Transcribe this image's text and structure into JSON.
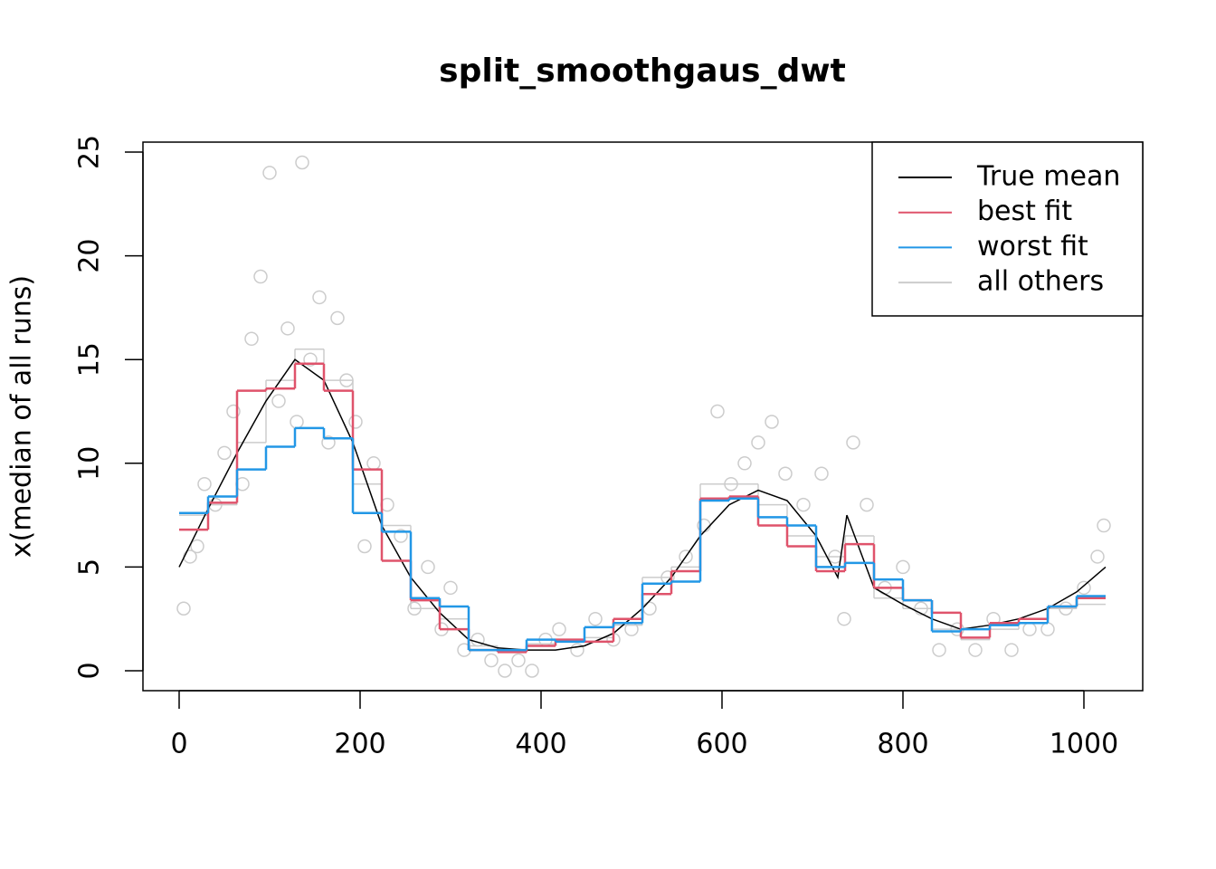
{
  "chart_data": {
    "type": "line",
    "title": "split_smoothgaus_dwt",
    "ylabel": "x(median of all runs)",
    "xlim": [
      -40,
      1065
    ],
    "ylim": [
      -0.96,
      25.48
    ],
    "xticks": [
      0,
      200,
      400,
      600,
      800,
      1000
    ],
    "yticks": [
      0,
      5,
      10,
      15,
      20,
      25
    ],
    "legend": "topright",
    "breaks": [
      0,
      32,
      64,
      96,
      128,
      160,
      192,
      224,
      256,
      288,
      320,
      352,
      384,
      416,
      448,
      480,
      512,
      544,
      576,
      608,
      640,
      672,
      704,
      736,
      768,
      800,
      832,
      864,
      896,
      928,
      960,
      992,
      1024
    ],
    "series": [
      {
        "name": "True mean",
        "color": "#000000",
        "style": "line",
        "x": [
          0,
          32,
          64,
          96,
          128,
          160,
          192,
          224,
          256,
          288,
          320,
          352,
          384,
          416,
          448,
          480,
          512,
          544,
          576,
          608,
          640,
          672,
          704,
          728,
          738,
          768,
          800,
          832,
          864,
          896,
          928,
          960,
          992,
          1024
        ],
        "values": [
          5,
          7.8,
          10.5,
          13,
          15,
          14,
          11,
          7,
          4.5,
          2.8,
          1.5,
          1.1,
          1,
          1,
          1.2,
          1.8,
          3,
          4.5,
          6.5,
          8,
          8.7,
          8.2,
          6.5,
          4.5,
          7.5,
          4,
          3.2,
          2.5,
          2,
          2.2,
          2.5,
          3,
          3.8,
          5
        ]
      },
      {
        "name": "best fit",
        "color": "#df536b",
        "style": "step",
        "values": [
          6.8,
          8.1,
          13.5,
          13.6,
          14.8,
          13.5,
          9.7,
          5.3,
          3.4,
          2.0,
          1.0,
          0.9,
          1.2,
          1.5,
          1.4,
          2.5,
          3.7,
          4.8,
          8.3,
          8.4,
          7.0,
          6.0,
          4.8,
          6.1,
          4.0,
          3.4,
          2.8,
          1.6,
          2.3,
          2.5,
          3.1,
          3.5
        ]
      },
      {
        "name": "worst fit",
        "color": "#2297e6",
        "style": "step",
        "values": [
          7.6,
          8.4,
          9.7,
          10.8,
          11.7,
          11.2,
          7.6,
          6.7,
          3.5,
          3.1,
          1.0,
          1.0,
          1.5,
          1.4,
          2.1,
          2.3,
          4.2,
          4.3,
          8.2,
          8.3,
          7.4,
          7.0,
          5.0,
          5.2,
          4.4,
          3.4,
          1.9,
          2.0,
          2.2,
          2.3,
          3.1,
          3.6
        ]
      },
      {
        "name": "all others",
        "color": "#cccccc",
        "style": "step",
        "values": [
          7.5,
          8.0,
          11,
          14,
          15.5,
          14,
          9,
          7,
          3,
          2.5,
          1.2,
          1,
          1.3,
          1.5,
          1.6,
          2.2,
          4.5,
          5,
          9,
          9,
          8,
          6.5,
          5.5,
          6.5,
          3.5,
          3,
          2,
          1.5,
          2,
          2.5,
          3,
          3.2
        ]
      }
    ],
    "points": {
      "color": "#cccccc",
      "x": [
        5,
        12,
        20,
        28,
        40,
        50,
        60,
        70,
        80,
        90,
        100,
        110,
        120,
        130,
        136,
        145,
        155,
        165,
        175,
        185,
        195,
        205,
        215,
        230,
        245,
        260,
        275,
        290,
        300,
        315,
        330,
        345,
        360,
        375,
        390,
        405,
        420,
        440,
        460,
        480,
        500,
        520,
        540,
        560,
        580,
        595,
        610,
        625,
        640,
        655,
        670,
        690,
        710,
        725,
        735,
        745,
        760,
        780,
        800,
        820,
        840,
        860,
        880,
        900,
        920,
        940,
        960,
        980,
        1000,
        1015,
        1022
      ],
      "y": [
        3,
        5.5,
        6,
        9,
        8,
        10.5,
        12.5,
        9,
        16,
        19,
        24,
        13,
        16.5,
        12,
        24.5,
        15,
        18,
        11,
        17,
        14,
        12,
        6,
        10,
        8,
        6.5,
        3,
        5,
        2,
        4,
        1,
        1.5,
        0.5,
        0,
        0.5,
        0,
        1.5,
        2,
        1,
        2.5,
        1.5,
        2,
        3,
        4.5,
        5.5,
        7,
        12.5,
        9,
        10,
        11,
        12,
        9.5,
        8,
        9.5,
        5.5,
        2.5,
        11,
        8,
        4,
        5,
        3,
        1,
        2,
        1,
        2.5,
        1,
        2,
        2,
        3,
        4,
        5.5,
        7
      ]
    }
  }
}
